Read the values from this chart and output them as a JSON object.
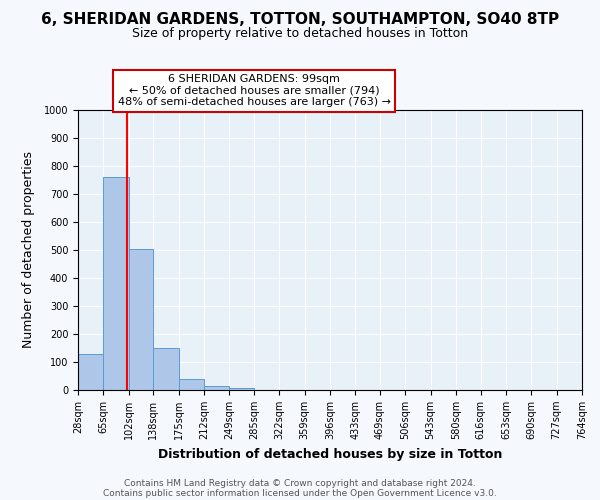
{
  "title": "6, SHERIDAN GARDENS, TOTTON, SOUTHAMPTON, SO40 8TP",
  "subtitle": "Size of property relative to detached houses in Totton",
  "xlabel": "Distribution of detached houses by size in Totton",
  "ylabel": "Number of detached properties",
  "bin_edges": [
    28,
    65,
    102,
    138,
    175,
    212,
    249,
    285,
    322,
    359,
    396,
    433,
    469,
    506,
    543,
    580,
    616,
    653,
    690,
    727,
    764
  ],
  "bin_heights": [
    127,
    760,
    505,
    150,
    40,
    13,
    8,
    0,
    0,
    0,
    0,
    0,
    0,
    0,
    0,
    0,
    0,
    0,
    0,
    0
  ],
  "tick_labels": [
    "28sqm",
    "65sqm",
    "102sqm",
    "138sqm",
    "175sqm",
    "212sqm",
    "249sqm",
    "285sqm",
    "322sqm",
    "359sqm",
    "396sqm",
    "433sqm",
    "469sqm",
    "506sqm",
    "543sqm",
    "580sqm",
    "616sqm",
    "653sqm",
    "690sqm",
    "727sqm",
    "764sqm"
  ],
  "bar_color": "#aec6e8",
  "bar_edge_color": "#5b9bd5",
  "vline_x": 99,
  "vline_color": "#ff0000",
  "ylim": [
    0,
    1000
  ],
  "yticks": [
    0,
    100,
    200,
    300,
    400,
    500,
    600,
    700,
    800,
    900,
    1000
  ],
  "annotation_title": "6 SHERIDAN GARDENS: 99sqm",
  "annotation_line1": "← 50% of detached houses are smaller (794)",
  "annotation_line2": "48% of semi-detached houses are larger (763) →",
  "annotation_box_color": "#ffffff",
  "annotation_box_edge": "#cc0000",
  "plot_bg_color": "#e8f0f8",
  "fig_bg_color": "#f5f8fd",
  "footer1": "Contains HM Land Registry data © Crown copyright and database right 2024.",
  "footer2": "Contains public sector information licensed under the Open Government Licence v3.0.",
  "title_fontsize": 11,
  "subtitle_fontsize": 9,
  "xlabel_fontsize": 9,
  "ylabel_fontsize": 9,
  "tick_fontsize": 7,
  "annotation_fontsize": 8,
  "footer_fontsize": 6.5
}
